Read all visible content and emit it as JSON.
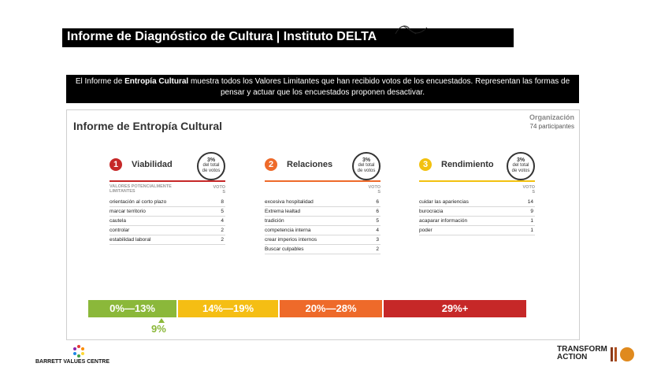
{
  "header": {
    "title": "Informe de Diagnóstico de Cultura | Instituto DELTA"
  },
  "intro": {
    "text_before": "El Informe de ",
    "text_bold": "Entropía Cultural",
    "text_after": "  muestra todos los Valores Limitantes que han recibido votos de los encuestados. Representan las formas de pensar y actuar que los encuestados proponen desactivar."
  },
  "card": {
    "title": "Informe de Entropía Cultural",
    "org_label": "Organización",
    "org_participants": "74 participantes",
    "columns": [
      {
        "number": "1",
        "name": "Viabilidad",
        "color": "#c62828",
        "pct": "3%",
        "pct_line1": "del total",
        "pct_line2": "de votos",
        "header_left": "VALORES POTENCIALMENTE LIMITANTES",
        "header_right_1": "VOTO",
        "header_right_2": "S",
        "rows": [
          {
            "name": "orientación al corto plazo",
            "votes": "8"
          },
          {
            "name": "marcar territorio",
            "votes": "5"
          },
          {
            "name": "cautela",
            "votes": "4"
          },
          {
            "name": "controlar",
            "votes": "2"
          },
          {
            "name": "estabilidad laboral",
            "votes": "2"
          }
        ]
      },
      {
        "number": "2",
        "name": "Relaciones",
        "color": "#ee6a2a",
        "pct": "3%",
        "pct_line1": "del total",
        "pct_line2": "de votos",
        "header_left": "",
        "header_right_1": "VOTO",
        "header_right_2": "S",
        "rows": [
          {
            "name": "excesiva hospitalidad",
            "votes": "6"
          },
          {
            "name": "Extrema lealtad",
            "votes": "6"
          },
          {
            "name": "tradición",
            "votes": "5"
          },
          {
            "name": "competencia interna",
            "votes": "4"
          },
          {
            "name": "crear imperios internos",
            "votes": "3"
          },
          {
            "name": "Buscar culpables",
            "votes": "2"
          }
        ]
      },
      {
        "number": "3",
        "name": "Rendimiento",
        "color": "#f2c10f",
        "pct": "3%",
        "pct_line1": "del total",
        "pct_line2": "de votos",
        "header_left": "",
        "header_right_1": "VOTO",
        "header_right_2": "S",
        "rows": [
          {
            "name": "cuidar las apariencias",
            "votes": "14"
          },
          {
            "name": "burocracia",
            "votes": "9"
          },
          {
            "name": " acaparar información",
            "votes": "1"
          },
          {
            "name": "poder",
            "votes": "1"
          }
        ]
      }
    ],
    "scale": [
      {
        "label": "0%—13%",
        "color": "#8bb83a"
      },
      {
        "label": "14%—19%",
        "color": "#f5be14"
      },
      {
        "label": "20%—28%",
        "color": "#ee6a2a"
      },
      {
        "label": "29%+",
        "color": "#c62828"
      }
    ],
    "current_value": "9%",
    "current_fraction": 0.09
  },
  "footer": {
    "left_logo_text": "BARRETT VALUES CENTRE",
    "right_logo_line1": "TRANSFORM",
    "right_logo_line2": "ACTION"
  }
}
